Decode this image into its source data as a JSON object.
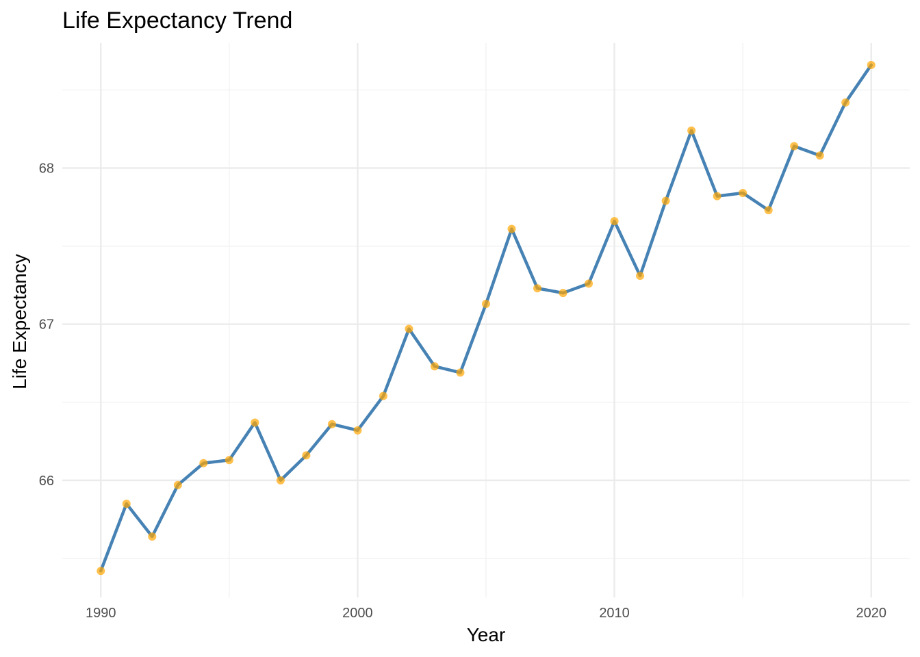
{
  "chart_data": {
    "type": "line",
    "title": "Life Expectancy Trend",
    "xlabel": "Year",
    "ylabel": "Life Expectancy",
    "xlim": [
      1988.5,
      2021.5
    ],
    "ylim": [
      65.25,
      68.8
    ],
    "x_ticks": [
      1990,
      2000,
      2010,
      2020
    ],
    "y_ticks": [
      66,
      67,
      68
    ],
    "grid": true,
    "legend": "none",
    "line_color": "#4682b4",
    "point_color": "#ffa500",
    "series": [
      {
        "x": [
          1990,
          1991,
          1992,
          1993,
          1994,
          1995,
          1996,
          1997,
          1998,
          1999,
          2000,
          2001,
          2002,
          2003,
          2004,
          2005,
          2006,
          2007,
          2008,
          2009,
          2010,
          2011,
          2012,
          2013,
          2014,
          2015,
          2016,
          2017,
          2018,
          2019,
          2020
        ],
        "values": [
          65.42,
          65.85,
          65.64,
          65.97,
          66.11,
          66.13,
          66.37,
          66.0,
          66.16,
          66.36,
          66.32,
          66.54,
          66.97,
          66.73,
          66.69,
          67.13,
          67.61,
          67.23,
          67.2,
          67.26,
          67.66,
          67.31,
          67.79,
          68.24,
          67.82,
          67.84,
          67.73,
          68.14,
          68.08,
          68.42,
          68.66
        ]
      }
    ]
  }
}
